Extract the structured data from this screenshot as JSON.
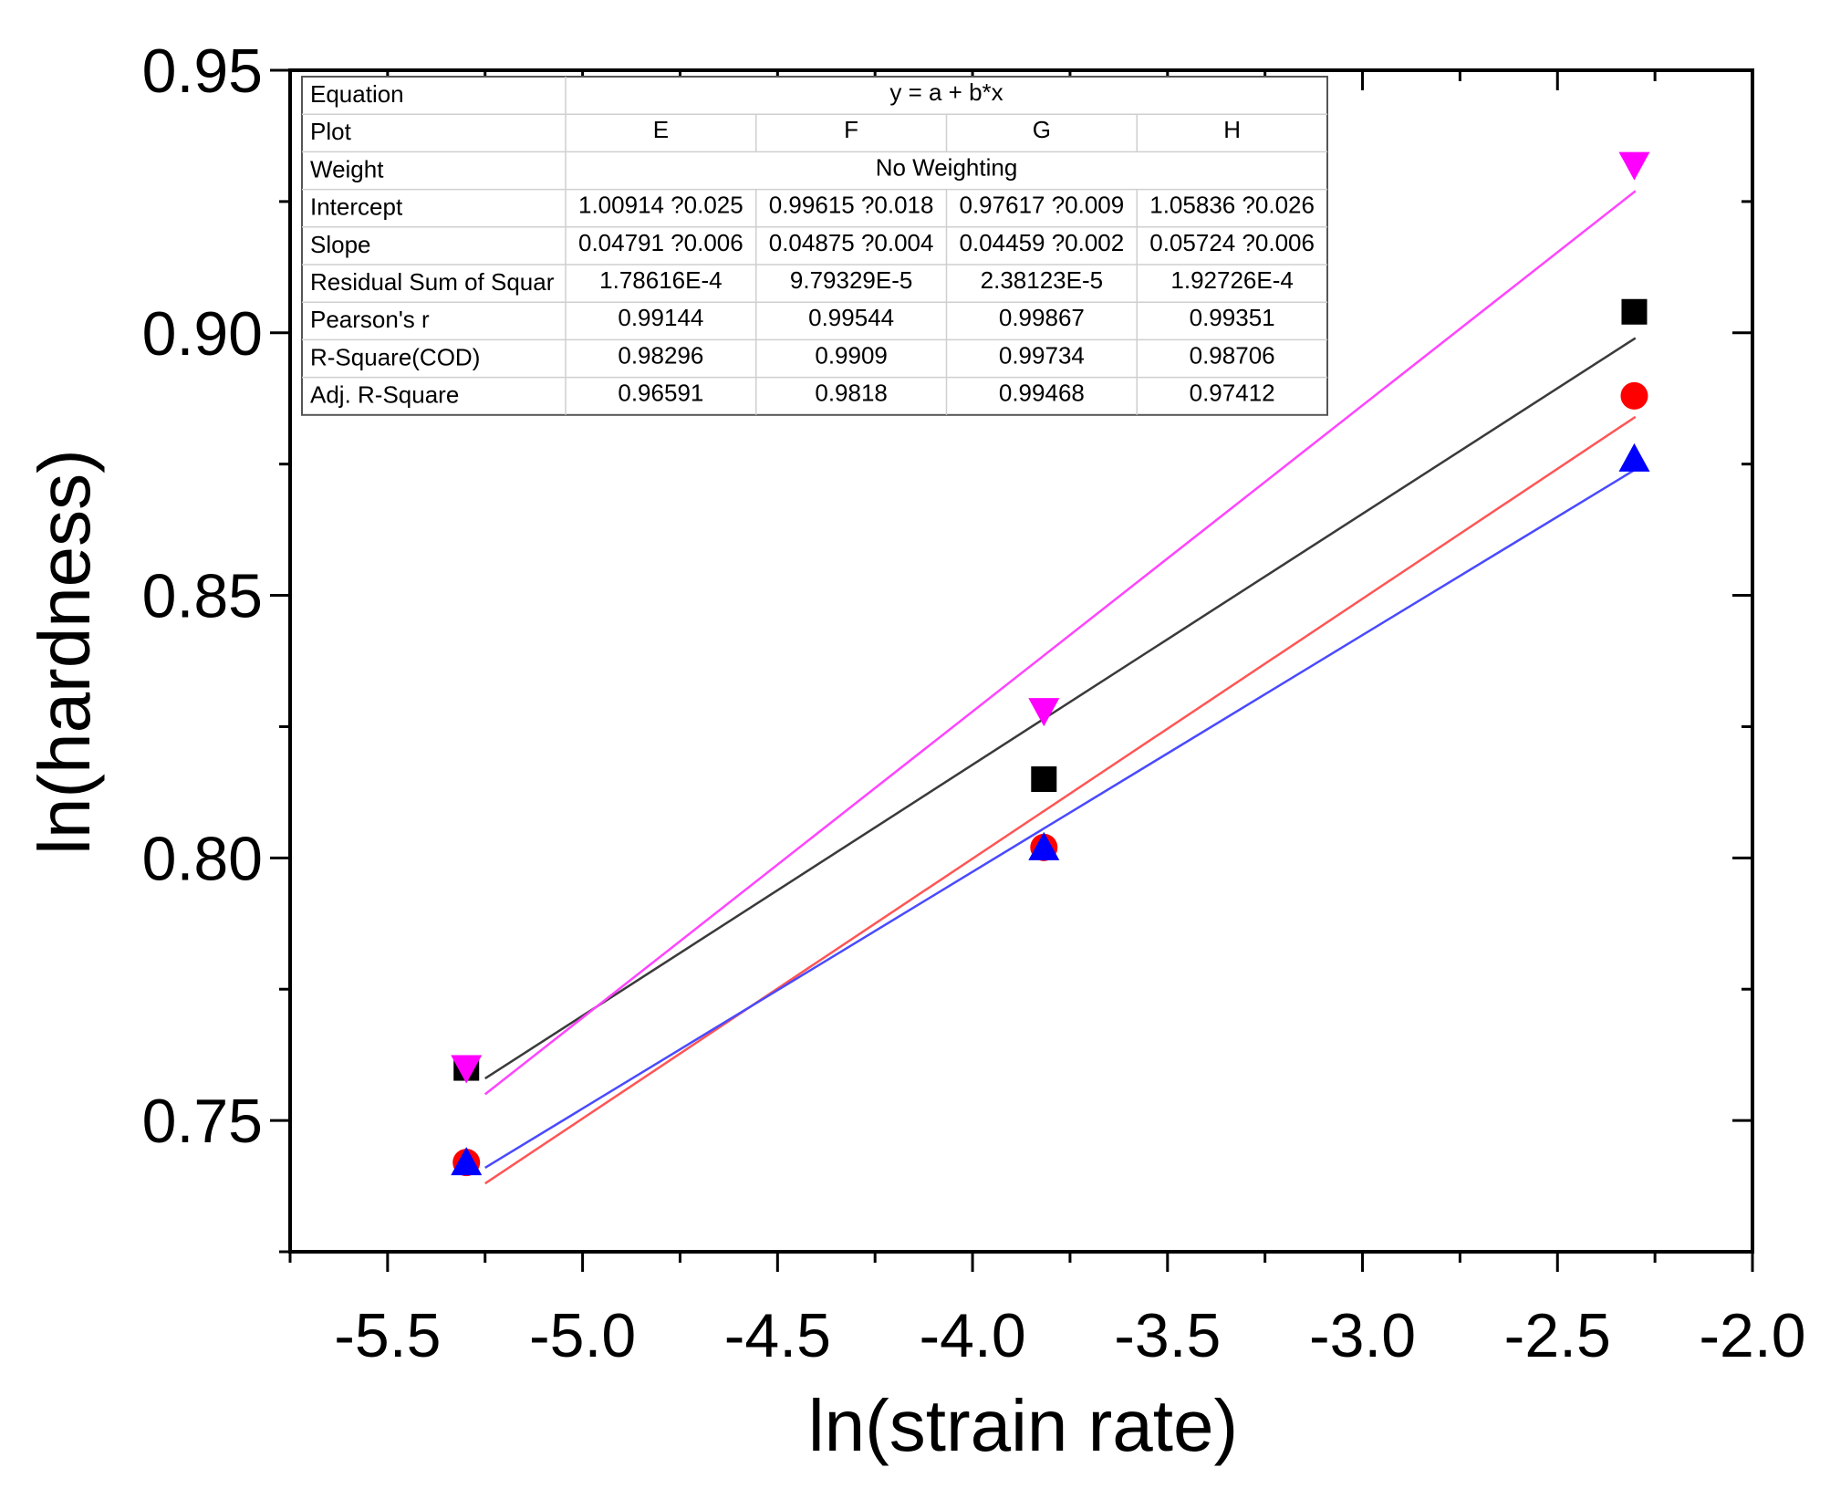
{
  "chart_data": {
    "type": "scatter",
    "title": "",
    "xlabel": "ln(strain rate)",
    "ylabel": "ln(hardness)",
    "xlim": [
      -5.75,
      -2.0
    ],
    "ylim": [
      0.725,
      0.95
    ],
    "xticks": [
      -5.5,
      -5.0,
      -4.5,
      -4.0,
      -3.5,
      -3.0,
      -2.5,
      -2.0
    ],
    "xtick_labels": [
      "-5.5",
      "-5.0",
      "-4.5",
      "-4.0",
      "-3.5",
      "-3.0",
      "-2.5",
      "-2.0"
    ],
    "yticks": [
      0.75,
      0.8,
      0.85,
      0.9,
      0.95
    ],
    "ytick_labels": [
      "0.75",
      "0.80",
      "0.85",
      "0.90",
      "0.95"
    ],
    "grid": false,
    "series": [
      {
        "name": "E",
        "marker": "square",
        "color": "#000000",
        "line_color": "#3a3a3a",
        "x": [
          -5.298,
          -3.817,
          -2.303
        ],
        "y": [
          0.76,
          0.815,
          0.904
        ],
        "fit": {
          "x": [
            -5.25,
            -2.3
          ],
          "y": [
            0.758,
            0.899
          ]
        }
      },
      {
        "name": "F",
        "marker": "circle",
        "color": "#ff0000",
        "line_color": "#ff5555",
        "x": [
          -5.298,
          -3.817,
          -2.303
        ],
        "y": [
          0.742,
          0.802,
          0.888
        ],
        "fit": {
          "x": [
            -5.25,
            -2.3
          ],
          "y": [
            0.738,
            0.884
          ]
        }
      },
      {
        "name": "G",
        "marker": "triangle-up",
        "color": "#0000ff",
        "line_color": "#4a4aff",
        "x": [
          -5.298,
          -3.817,
          -2.303
        ],
        "y": [
          0.742,
          0.802,
          0.876
        ],
        "fit": {
          "x": [
            -5.25,
            -2.3
          ],
          "y": [
            0.741,
            0.874
          ]
        }
      },
      {
        "name": "H",
        "marker": "triangle-down",
        "color": "#ff00ff",
        "line_color": "#ff44ff",
        "x": [
          -5.298,
          -3.817,
          -2.303
        ],
        "y": [
          0.76,
          0.828,
          0.932
        ],
        "fit": {
          "x": [
            -5.25,
            -2.3
          ],
          "y": [
            0.755,
            0.927
          ]
        }
      }
    ],
    "fit_table": {
      "equation_label": "Equation",
      "equation": "y = a + b*x",
      "plot_label": "Plot",
      "plots": [
        "E",
        "F",
        "G",
        "H"
      ],
      "weight_label": "Weight",
      "weight": "No Weighting",
      "rows": [
        {
          "label": "Intercept",
          "values": [
            "1.00914 ?0.025",
            "0.99615 ?0.018",
            "0.97617 ?0.009",
            "1.05836 ?0.026"
          ]
        },
        {
          "label": "Slope",
          "values": [
            "0.04791 ?0.006",
            "0.04875 ?0.004",
            "0.04459 ?0.002",
            "0.05724 ?0.006"
          ]
        },
        {
          "label": "Residual Sum of Squar",
          "values": [
            "1.78616E-4",
            "9.79329E-5",
            "2.38123E-5",
            "1.92726E-4"
          ]
        },
        {
          "label": "Pearson's r",
          "values": [
            "0.99144",
            "0.99544",
            "0.99867",
            "0.99351"
          ]
        },
        {
          "label": "R-Square(COD)",
          "values": [
            "0.98296",
            "0.9909",
            "0.99734",
            "0.98706"
          ]
        },
        {
          "label": "Adj. R-Square",
          "values": [
            "0.96591",
            "0.9818",
            "0.99468",
            "0.97412"
          ]
        }
      ]
    }
  }
}
